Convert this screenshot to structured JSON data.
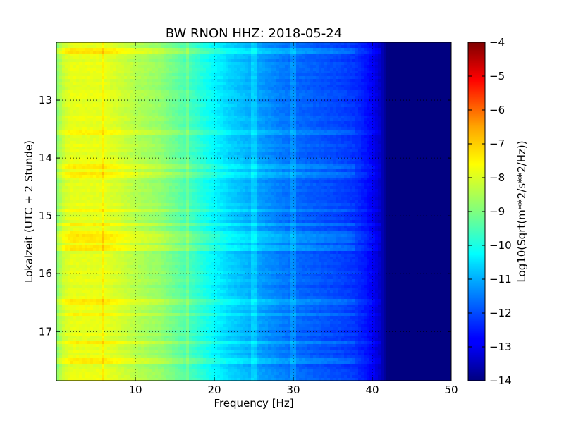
{
  "chart_data": {
    "type": "heatmap",
    "title": "BW RNON HHZ: 2018-05-24",
    "xlabel": "Frequency [Hz]",
    "ylabel": "Lokalzeit (UTC + 2 Stunde)",
    "xlim": [
      0,
      50
    ],
    "ylim": [
      12.0,
      17.85
    ],
    "y_inverted": true,
    "x_ticks": [
      10,
      20,
      30,
      40,
      50
    ],
    "y_ticks": [
      13,
      14,
      15,
      16,
      17
    ],
    "grid": true,
    "colormap": "jet",
    "colorbar": {
      "label": "Log10(Sqrt(m**2/s**2/Hz))",
      "range": [
        -14,
        -4
      ],
      "ticks": [
        -4,
        -5,
        -6,
        -7,
        -8,
        -9,
        -10,
        -11,
        -12,
        -13,
        -14
      ]
    },
    "spectrum_profile": {
      "frequency_hz": [
        0,
        1,
        2,
        4,
        6,
        8,
        10,
        13,
        15,
        17,
        20,
        22,
        25,
        28,
        30,
        33,
        36,
        38,
        40,
        41,
        42,
        50
      ],
      "log10_amplitude": [
        -9.0,
        -8.2,
        -8.0,
        -8.0,
        -8.0,
        -8.2,
        -8.5,
        -8.8,
        -9.2,
        -9.6,
        -10.3,
        -10.7,
        -11.1,
        -11.5,
        -11.7,
        -11.9,
        -12.1,
        -12.3,
        -12.8,
        -13.3,
        -14.0,
        -14.0
      ]
    },
    "spectral_lines_hz": [
      6.0,
      16.7,
      25.0,
      30.0
    ],
    "bright_bands_hour": [
      12.15,
      13.55,
      14.15,
      14.3,
      14.9,
      15.15,
      15.3,
      15.4,
      15.55,
      16.5,
      16.7,
      17.2,
      17.5
    ]
  }
}
